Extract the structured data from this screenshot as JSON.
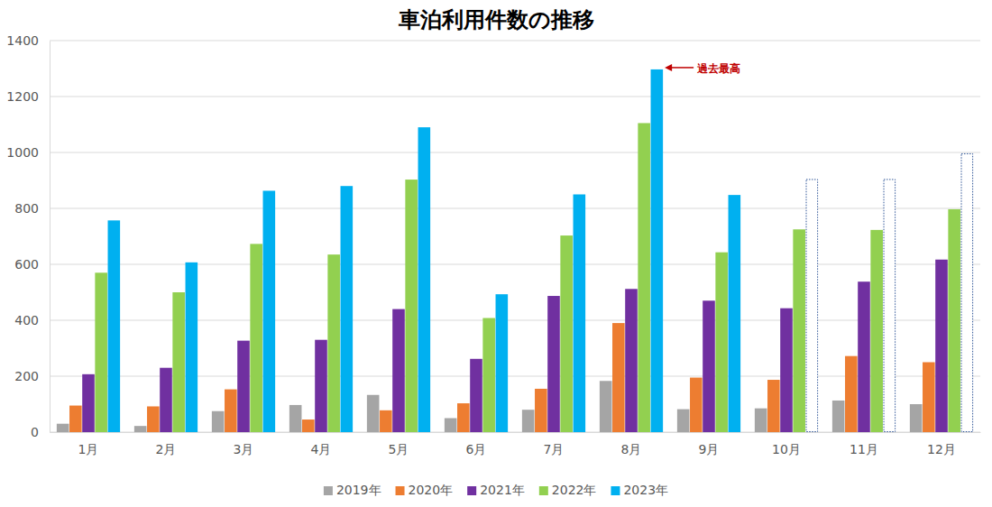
{
  "chart_data": {
    "type": "bar",
    "title": "車泊利用件数の推移",
    "categories": [
      "1月",
      "2月",
      "3月",
      "4月",
      "5月",
      "6月",
      "7月",
      "8月",
      "9月",
      "10月",
      "11月",
      "12月"
    ],
    "series": [
      {
        "name": "2019年",
        "color": "#a5a5a5",
        "values": [
          30,
          22,
          75,
          97,
          133,
          50,
          80,
          183,
          82,
          85,
          113,
          100
        ]
      },
      {
        "name": "2020年",
        "color": "#ed7d31",
        "values": [
          95,
          92,
          153,
          45,
          78,
          103,
          155,
          390,
          195,
          187,
          272,
          250
        ]
      },
      {
        "name": "2021年",
        "color": "#7030a0",
        "values": [
          207,
          230,
          327,
          330,
          440,
          262,
          487,
          512,
          470,
          443,
          538,
          617
        ]
      },
      {
        "name": "2022年",
        "color": "#92d050",
        "values": [
          570,
          500,
          673,
          635,
          903,
          408,
          703,
          1105,
          643,
          725,
          723,
          797
        ]
      },
      {
        "name": "2023年",
        "color": "#00b0f0",
        "values": [
          757,
          607,
          863,
          880,
          1090,
          493,
          850,
          1297,
          848,
          null,
          null,
          null
        ],
        "projected": [
          null,
          null,
          null,
          null,
          null,
          null,
          null,
          null,
          null,
          905,
          905,
          997
        ]
      }
    ],
    "annotations": [
      {
        "text": "過去最高",
        "x": "8月",
        "series": "2023年"
      }
    ],
    "ylim": [
      0,
      1400
    ],
    "yticks": [
      0,
      200,
      400,
      600,
      800,
      1000,
      1200,
      1400
    ],
    "grid": true,
    "legend": "bottom"
  }
}
